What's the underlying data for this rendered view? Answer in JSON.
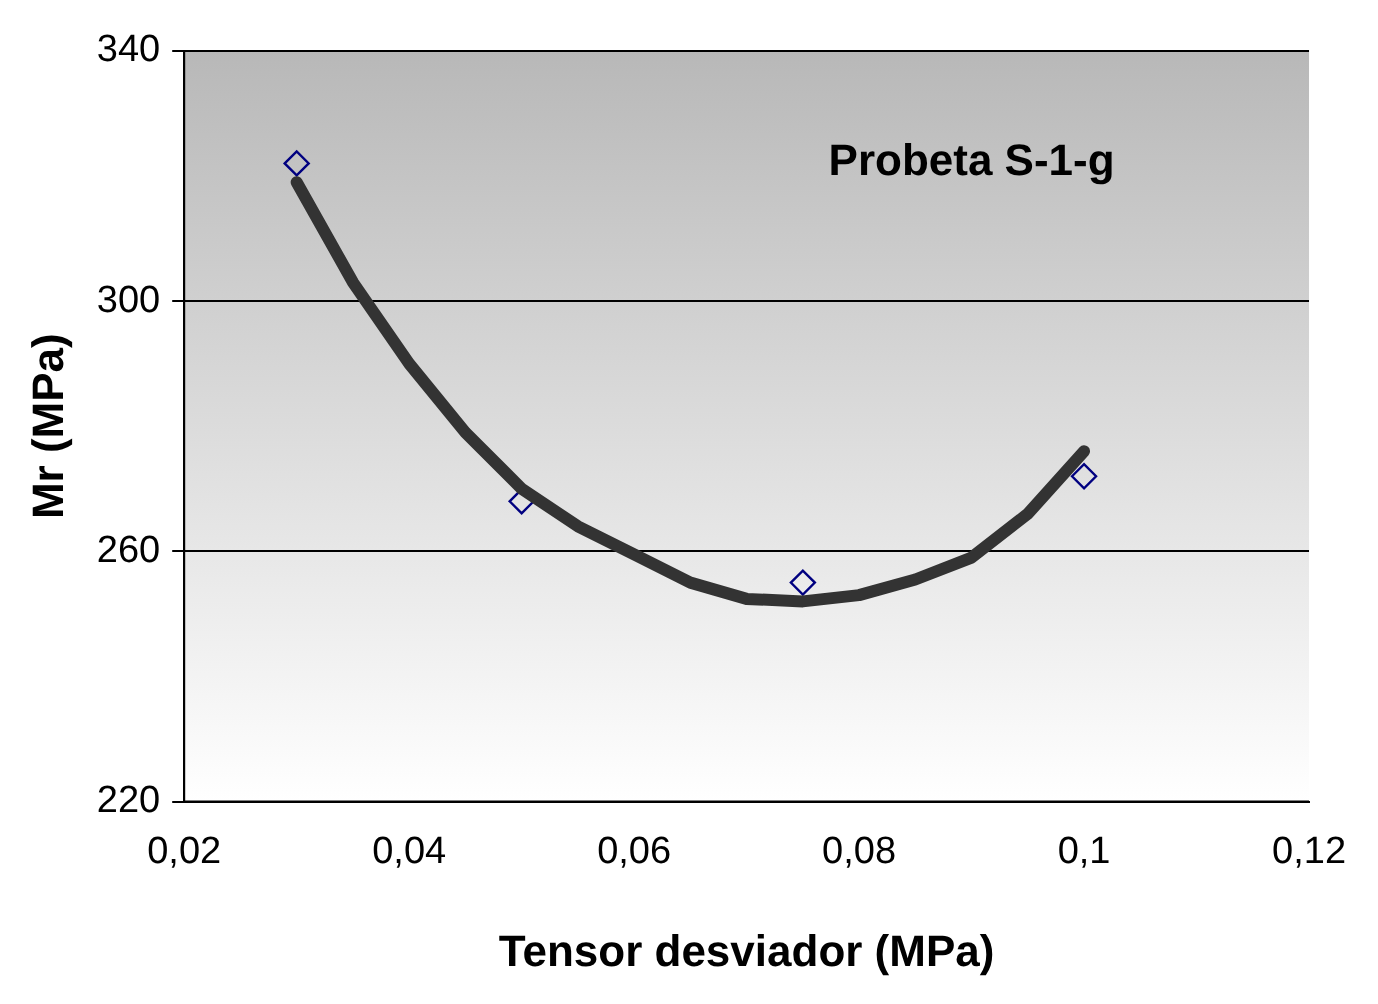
{
  "chart_data": {
    "type": "scatter",
    "xlabel": "Tensor desviador (MPa)",
    "ylabel": "Mr (MPa)",
    "annotations": [
      "Probeta S-1-g"
    ],
    "xlim": [
      0.02,
      0.12
    ],
    "xticks": [
      {
        "value": 0.02,
        "label": "0,02"
      },
      {
        "value": 0.04,
        "label": "0,04"
      },
      {
        "value": 0.06,
        "label": "0,06"
      },
      {
        "value": 0.08,
        "label": "0,08"
      },
      {
        "value": 0.1,
        "label": "0,1"
      },
      {
        "value": 0.12,
        "label": "0,12"
      }
    ],
    "ylim": [
      220,
      340
    ],
    "yticks": [
      220,
      260,
      300,
      340
    ],
    "grid": "y",
    "legend": false,
    "series": [
      {
        "type": "line",
        "color": "#333333",
        "marker": "none",
        "line_style": "solid",
        "x": [
          0.03,
          0.035,
          0.04,
          0.045,
          0.05,
          0.055,
          0.06,
          0.065,
          0.07,
          0.075,
          0.08,
          0.085,
          0.09,
          0.095,
          0.1
        ],
        "values": [
          319,
          303,
          290,
          279,
          270,
          264,
          259.5,
          255,
          252.4,
          252,
          253,
          255.5,
          259,
          266,
          276
        ]
      },
      {
        "type": "scatter",
        "color": "#000080",
        "marker": "diamond",
        "x": [
          0.03,
          0.05,
          0.075,
          0.1
        ],
        "values": [
          322,
          268,
          255,
          272
        ]
      }
    ]
  }
}
